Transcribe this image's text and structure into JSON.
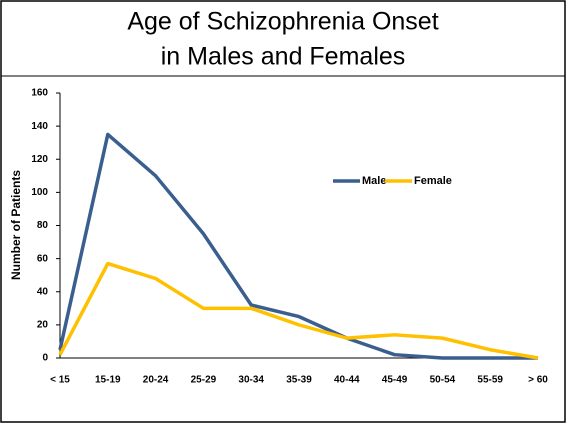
{
  "chart_data": {
    "type": "line",
    "title": "Age of Schizophrenia Onset",
    "subtitle": "in Males and Females",
    "y_label": "Number of Patients",
    "categories": [
      "< 15",
      "15-19",
      "20-24",
      "25-29",
      "30-34",
      "35-39",
      "40-44",
      "45-49",
      "50-54",
      "55-59",
      "> 60"
    ],
    "series": [
      {
        "name": "Male",
        "color": "#3a5f8f",
        "values": [
          5,
          135,
          110,
          75,
          32,
          25,
          12,
          2,
          0,
          0,
          0
        ]
      },
      {
        "name": "Female",
        "color": "#ffc000",
        "values": [
          2,
          57,
          48,
          30,
          30,
          20,
          12,
          14,
          12,
          5,
          0
        ]
      }
    ],
    "ylim": [
      0,
      160
    ],
    "yticks": [
      0,
      20,
      40,
      60,
      80,
      100,
      120,
      140,
      160
    ],
    "grid": false,
    "legend": "right"
  }
}
